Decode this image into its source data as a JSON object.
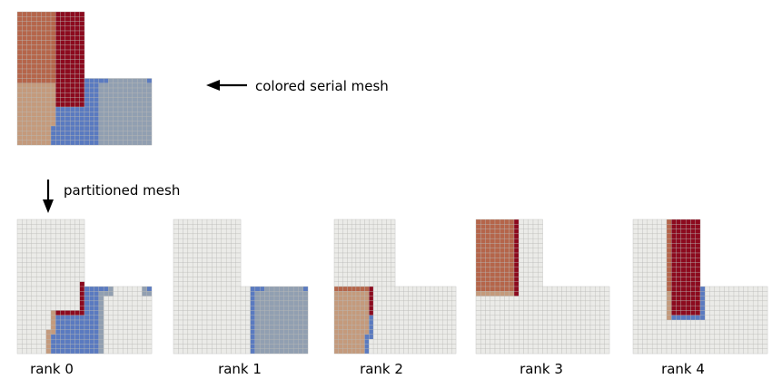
{
  "annotations": {
    "serial_label": "colored serial mesh",
    "partition_label": "partitioned mesh"
  },
  "ranks": [
    {
      "label": "rank 0"
    },
    {
      "label": "rank 1"
    },
    {
      "label": "rank 2"
    },
    {
      "label": "rank 3"
    },
    {
      "label": "rank 4"
    }
  ],
  "colors": {
    "background_cell": "#ebebe8",
    "grid_line": "#b9b9b6",
    "part_orange": "#b5654a",
    "part_darkred": "#8c0a1e",
    "part_blue": "#5a7ac0",
    "part_tan": "#c49a7c",
    "part_slate": "#919fb1"
  },
  "mesh": {
    "shape": "L-shaped",
    "grid_columns": 28,
    "grid_rows": 28,
    "partition_count": 5,
    "rank_to_color": [
      "part_blue",
      "part_slate",
      "part_tan",
      "part_orange",
      "part_darkred"
    ]
  }
}
